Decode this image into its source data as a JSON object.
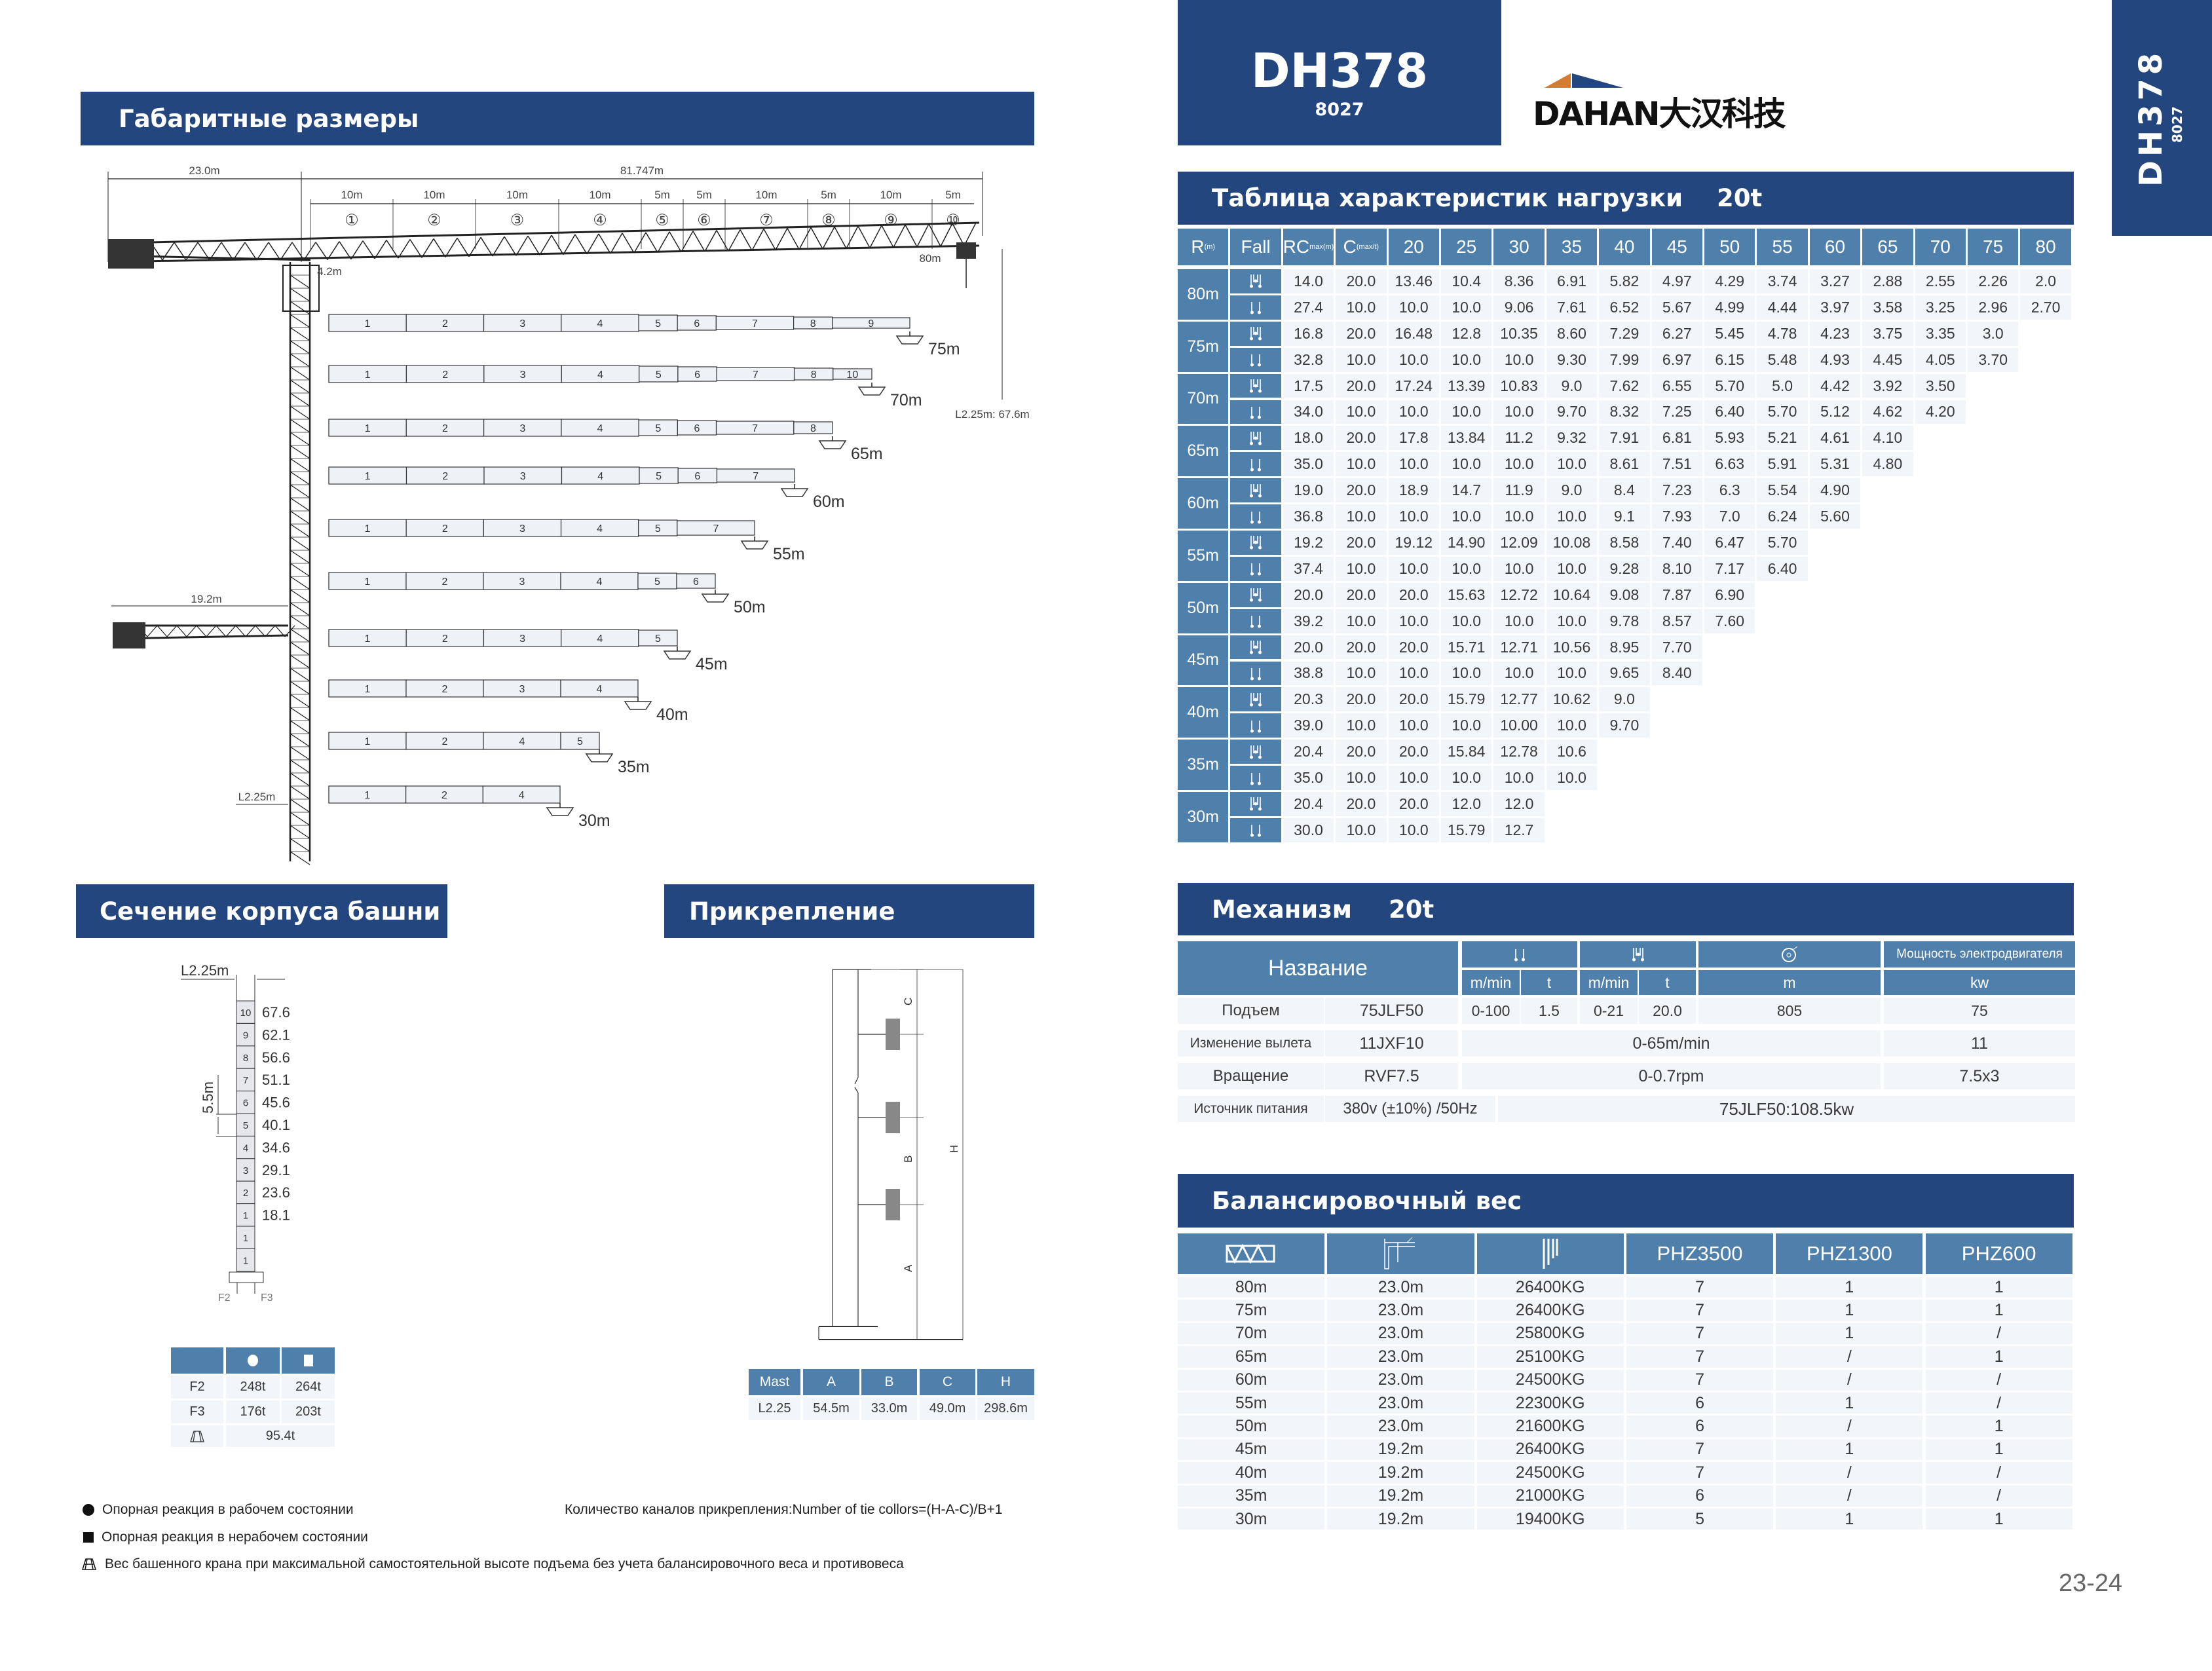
{
  "header": {
    "model": "DH378",
    "sub": "8027",
    "brand": "DAHAN",
    "brand_cn": "大汉科技",
    "side_model": "DH378",
    "side_sub": "8027",
    "colors": {
      "dark_blue": "#24467f",
      "mid_blue": "#4f7fab",
      "orange": "#d57a33"
    }
  },
  "dimensions": {
    "title": "Габаритные размеры",
    "counter_jib": "23.0m",
    "total_jib": "81.747m",
    "jib_sections": [
      {
        "len": "10m",
        "num": "①"
      },
      {
        "len": "10m",
        "num": "②"
      },
      {
        "len": "10m",
        "num": "③"
      },
      {
        "len": "10m",
        "num": "④"
      },
      {
        "len": "5m",
        "num": "⑤"
      },
      {
        "len": "5m",
        "num": "⑥"
      },
      {
        "len": "10m",
        "num": "⑦"
      },
      {
        "len": "5m",
        "num": "⑧"
      },
      {
        "len": "10m",
        "num": "⑨"
      },
      {
        "len": "5m",
        "num": "⑩"
      }
    ],
    "hook_radius": "80m",
    "cab": "4.2m",
    "height": "L2.25m: 67.6m",
    "short_counter_jib": "19.2m",
    "mast_label": "L2.25m",
    "configs": [
      {
        "label": "75m",
        "segments": [
          "1",
          "2",
          "3",
          "4",
          "5",
          "6",
          "7",
          "8",
          "9"
        ]
      },
      {
        "label": "70m",
        "segments": [
          "1",
          "2",
          "3",
          "4",
          "5",
          "6",
          "7",
          "8",
          "10"
        ]
      },
      {
        "label": "65m",
        "segments": [
          "1",
          "2",
          "3",
          "4",
          "5",
          "6",
          "7",
          "8"
        ]
      },
      {
        "label": "60m",
        "segments": [
          "1",
          "2",
          "3",
          "4",
          "5",
          "6",
          "7"
        ]
      },
      {
        "label": "55m",
        "segments": [
          "1",
          "2",
          "3",
          "4",
          "5",
          "7"
        ]
      },
      {
        "label": "50m",
        "segments": [
          "1",
          "2",
          "3",
          "4",
          "5",
          "6"
        ]
      },
      {
        "label": "45m",
        "segments": [
          "1",
          "2",
          "3",
          "4",
          "5"
        ]
      },
      {
        "label": "40m",
        "segments": [
          "1",
          "2",
          "3",
          "4"
        ]
      },
      {
        "label": "35m",
        "segments": [
          "1",
          "2",
          "4",
          "5"
        ]
      },
      {
        "label": "30m",
        "segments": [
          "1",
          "2",
          "4"
        ]
      }
    ]
  },
  "load_table": {
    "title": "Таблица характеристик нагрузки",
    "capacity": "20t",
    "headers": {
      "r": "R",
      "r_unit": "(m)",
      "fall": "Fall",
      "rc": "RC",
      "rc_unit": "max(m)",
      "c": "C",
      "c_unit": "(max/t)"
    },
    "radii": [
      "20",
      "25",
      "30",
      "35",
      "40",
      "45",
      "50",
      "55",
      "60",
      "65",
      "70",
      "75",
      "80"
    ],
    "groups": [
      {
        "jib": "80m",
        "rows": [
          {
            "fall": "four-fall",
            "rc": "14.0",
            "c": "20.0",
            "values": [
              "13.46",
              "10.4",
              "8.36",
              "6.91",
              "5.82",
              "4.97",
              "4.29",
              "3.74",
              "3.27",
              "2.88",
              "2.55",
              "2.26",
              "2.0"
            ]
          },
          {
            "fall": "two-fall",
            "rc": "27.4",
            "c": "10.0",
            "values": [
              "10.0",
              "10.0",
              "9.06",
              "7.61",
              "6.52",
              "5.67",
              "4.99",
              "4.44",
              "3.97",
              "3.58",
              "3.25",
              "2.96",
              "2.70"
            ]
          }
        ]
      },
      {
        "jib": "75m",
        "rows": [
          {
            "fall": "four-fall",
            "rc": "16.8",
            "c": "20.0",
            "values": [
              "16.48",
              "12.8",
              "10.35",
              "8.60",
              "7.29",
              "6.27",
              "5.45",
              "4.78",
              "4.23",
              "3.75",
              "3.35",
              "3.0"
            ]
          },
          {
            "fall": "two-fall",
            "rc": "32.8",
            "c": "10.0",
            "values": [
              "10.0",
              "10.0",
              "10.0",
              "9.30",
              "7.99",
              "6.97",
              "6.15",
              "5.48",
              "4.93",
              "4.45",
              "4.05",
              "3.70"
            ]
          }
        ]
      },
      {
        "jib": "70m",
        "rows": [
          {
            "fall": "four-fall",
            "rc": "17.5",
            "c": "20.0",
            "values": [
              "17.24",
              "13.39",
              "10.83",
              "9.0",
              "7.62",
              "6.55",
              "5.70",
              "5.0",
              "4.42",
              "3.92",
              "3.50"
            ]
          },
          {
            "fall": "two-fall",
            "rc": "34.0",
            "c": "10.0",
            "values": [
              "10.0",
              "10.0",
              "10.0",
              "9.70",
              "8.32",
              "7.25",
              "6.40",
              "5.70",
              "5.12",
              "4.62",
              "4.20"
            ]
          }
        ]
      },
      {
        "jib": "65m",
        "rows": [
          {
            "fall": "four-fall",
            "rc": "18.0",
            "c": "20.0",
            "values": [
              "17.8",
              "13.84",
              "11.2",
              "9.32",
              "7.91",
              "6.81",
              "5.93",
              "5.21",
              "4.61",
              "4.10"
            ]
          },
          {
            "fall": "two-fall",
            "rc": "35.0",
            "c": "10.0",
            "values": [
              "10.0",
              "10.0",
              "10.0",
              "10.0",
              "8.61",
              "7.51",
              "6.63",
              "5.91",
              "5.31",
              "4.80"
            ]
          }
        ]
      },
      {
        "jib": "60m",
        "rows": [
          {
            "fall": "four-fall",
            "rc": "19.0",
            "c": "20.0",
            "values": [
              "18.9",
              "14.7",
              "11.9",
              "9.0",
              "8.4",
              "7.23",
              "6.3",
              "5.54",
              "4.90"
            ]
          },
          {
            "fall": "two-fall",
            "rc": "36.8",
            "c": "10.0",
            "values": [
              "10.0",
              "10.0",
              "10.0",
              "10.0",
              "9.1",
              "7.93",
              "7.0",
              "6.24",
              "5.60"
            ]
          }
        ]
      },
      {
        "jib": "55m",
        "rows": [
          {
            "fall": "four-fall",
            "rc": "19.2",
            "c": "20.0",
            "values": [
              "19.12",
              "14.90",
              "12.09",
              "10.08",
              "8.58",
              "7.40",
              "6.47",
              "5.70"
            ]
          },
          {
            "fall": "two-fall",
            "rc": "37.4",
            "c": "10.0",
            "values": [
              "10.0",
              "10.0",
              "10.0",
              "10.0",
              "9.28",
              "8.10",
              "7.17",
              "6.40"
            ]
          }
        ]
      },
      {
        "jib": "50m",
        "rows": [
          {
            "fall": "four-fall",
            "rc": "20.0",
            "c": "20.0",
            "values": [
              "20.0",
              "15.63",
              "12.72",
              "10.64",
              "9.08",
              "7.87",
              "6.90"
            ]
          },
          {
            "fall": "two-fall",
            "rc": "39.2",
            "c": "10.0",
            "values": [
              "10.0",
              "10.0",
              "10.0",
              "10.0",
              "9.78",
              "8.57",
              "7.60"
            ]
          }
        ]
      },
      {
        "jib": "45m",
        "rows": [
          {
            "fall": "four-fall",
            "rc": "20.0",
            "c": "20.0",
            "values": [
              "20.0",
              "15.71",
              "12.71",
              "10.56",
              "8.95",
              "7.70"
            ]
          },
          {
            "fall": "two-fall",
            "rc": "38.8",
            "c": "10.0",
            "values": [
              "10.0",
              "10.0",
              "10.0",
              "10.0",
              "9.65",
              "8.40"
            ]
          }
        ]
      },
      {
        "jib": "40m",
        "rows": [
          {
            "fall": "four-fall",
            "rc": "20.3",
            "c": "20.0",
            "values": [
              "20.0",
              "15.79",
              "12.77",
              "10.62",
              "9.0"
            ]
          },
          {
            "fall": "two-fall",
            "rc": "39.0",
            "c": "10.0",
            "values": [
              "10.0",
              "10.0",
              "10.00",
              "10.0",
              "9.70"
            ]
          }
        ]
      },
      {
        "jib": "35m",
        "rows": [
          {
            "fall": "four-fall",
            "rc": "20.4",
            "c": "20.0",
            "values": [
              "20.0",
              "15.84",
              "12.78",
              "10.6"
            ]
          },
          {
            "fall": "two-fall",
            "rc": "35.0",
            "c": "10.0",
            "values": [
              "10.0",
              "10.0",
              "10.0",
              "10.0"
            ]
          }
        ]
      },
      {
        "jib": "30m",
        "rows": [
          {
            "fall": "four-fall",
            "rc": "20.4",
            "c": "20.0",
            "values": [
              "20.0",
              "12.0",
              "12.0"
            ]
          },
          {
            "fall": "two-fall",
            "rc": "30.0",
            "c": "10.0",
            "values": [
              "10.0",
              "15.79",
              "12.7"
            ]
          }
        ]
      }
    ]
  },
  "mechanism": {
    "title": "Механизм",
    "capacity": "20t",
    "name_header": "Название",
    "power_header": "Мощность электродвигателя",
    "units": {
      "speed1": "m/min",
      "load1": "t",
      "speed2": "m/min",
      "load2": "t",
      "rope": "m",
      "power": "kw"
    },
    "hoist": {
      "name": "Подъем",
      "model": "75JLF50",
      "speed1": "0-100",
      "load1": "1.5",
      "speed2": "0-21",
      "load2": "20.0",
      "rope": "805",
      "power": "75"
    },
    "trolley": {
      "name": "Изменение вылета",
      "model": "11JXF10",
      "speed": "0-65m/min",
      "power": "11"
    },
    "slewing": {
      "name": "Вращение",
      "model": "RVF7.5",
      "speed": "0-0.7rpm",
      "power": "7.5x3"
    },
    "supply": {
      "name": "Источник питания",
      "value": "380v (±10%) /50Hz",
      "total": "75JLF50:108.5kw"
    }
  },
  "ballast": {
    "title": "Балансировочный вес",
    "headers": [
      "PHZ3500",
      "PHZ1300",
      "PHZ600"
    ],
    "rows": [
      [
        "80m",
        "23.0m",
        "26400KG",
        "7",
        "1",
        "1"
      ],
      [
        "75m",
        "23.0m",
        "26400KG",
        "7",
        "1",
        "1"
      ],
      [
        "70m",
        "23.0m",
        "25800KG",
        "7",
        "1",
        "/"
      ],
      [
        "65m",
        "23.0m",
        "25100KG",
        "7",
        "/",
        "1"
      ],
      [
        "60m",
        "23.0m",
        "24500KG",
        "7",
        "/",
        "/"
      ],
      [
        "55m",
        "23.0m",
        "22300KG",
        "6",
        "1",
        "/"
      ],
      [
        "50m",
        "23.0m",
        "21600KG",
        "6",
        "/",
        "1"
      ],
      [
        "45m",
        "19.2m",
        "26400KG",
        "7",
        "1",
        "1"
      ],
      [
        "40m",
        "19.2m",
        "24500KG",
        "7",
        "/",
        "/"
      ],
      [
        "35m",
        "19.2m",
        "21000KG",
        "6",
        "/",
        "/"
      ],
      [
        "30m",
        "19.2m",
        "19400KG",
        "5",
        "1",
        "1"
      ]
    ]
  },
  "section": {
    "title": "Сечение корпуса башни",
    "width_label": "L2.25m",
    "section_height": "5.5m",
    "f2": "F2",
    "f3": "F3",
    "mast": [
      {
        "num": "10",
        "h": "67.6"
      },
      {
        "num": "9",
        "h": "62.1"
      },
      {
        "num": "8",
        "h": "56.6"
      },
      {
        "num": "7",
        "h": "51.1"
      },
      {
        "num": "6",
        "h": "45.6"
      },
      {
        "num": "5",
        "h": "40.1"
      },
      {
        "num": "4",
        "h": "34.6"
      },
      {
        "num": "3",
        "h": "29.1"
      },
      {
        "num": "2",
        "h": "23.6"
      },
      {
        "num": "1",
        "h": "18.1"
      },
      {
        "num": "1",
        "h": ""
      },
      {
        "num": "1",
        "h": ""
      }
    ],
    "reactions": {
      "rows": [
        {
          "label": "F2",
          "working": "248t",
          "idle": "264t"
        },
        {
          "label": "F3",
          "working": "176t",
          "idle": "203t"
        }
      ],
      "weight": "95.4t"
    }
  },
  "tie": {
    "title": "Прикрепление",
    "labels": {
      "a": "A",
      "b": "B",
      "c": "C",
      "h": "H"
    },
    "table_headers": [
      "Mast",
      "A",
      "B",
      "C",
      "H"
    ],
    "table_row": [
      "L2.25",
      "54.5m",
      "33.0m",
      "49.0m",
      "298.6m"
    ],
    "note": "Количество каналов прикрепления:Number of tie collors=(H-A-C)/B+1"
  },
  "footnotes": [
    {
      "icon": "circle",
      "text": "Опорная реакция в рабочем состоянии"
    },
    {
      "icon": "square",
      "text": "Опорная реакция в нерабочем состоянии"
    },
    {
      "icon": "weight",
      "text": "Вес башенного крана при максимальной самостоятельной высоте подъема без учета балансировочного веса и противовеса"
    }
  ],
  "page_number": "23-24"
}
